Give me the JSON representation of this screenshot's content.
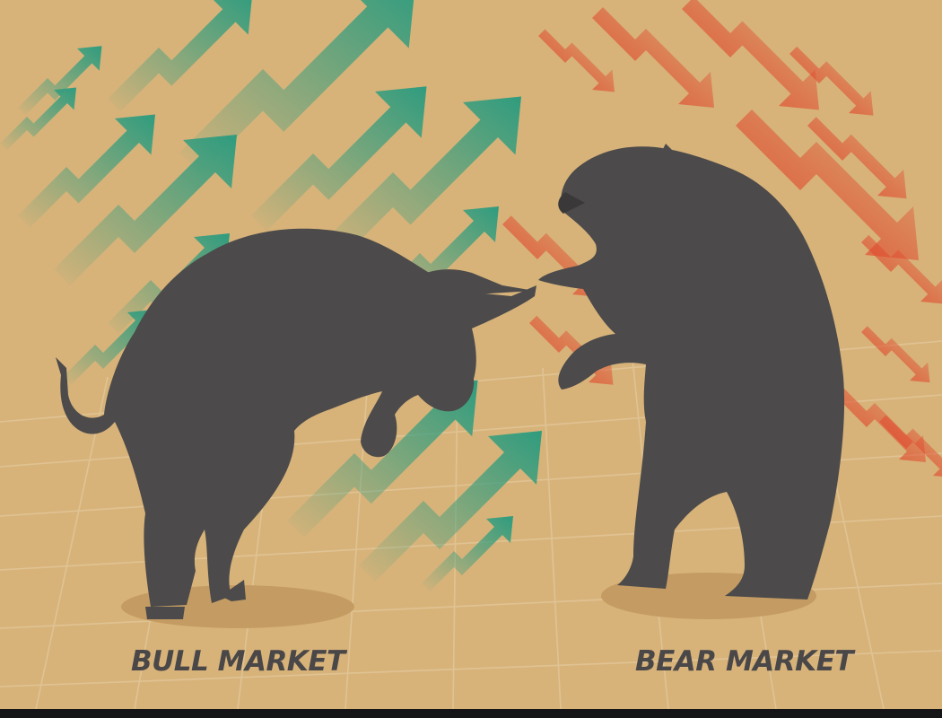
{
  "image": {
    "captions": {
      "bull": "BULL MARKET",
      "bear": "BEAR MARKET"
    },
    "colors": {
      "background": "#d7b37a",
      "grid": "#e2c698",
      "bull_arrows": "#2f9c7e",
      "bear_arrows": "#e04a2e",
      "animal_fill": "#4c4a4a",
      "shadow": "#c49c63",
      "caption_text": "#4a4748",
      "bottom_band": "#151518"
    },
    "icons": [
      "bull-silhouette",
      "bear-silhouette",
      "up-trend-arrow",
      "down-trend-arrow"
    ]
  }
}
